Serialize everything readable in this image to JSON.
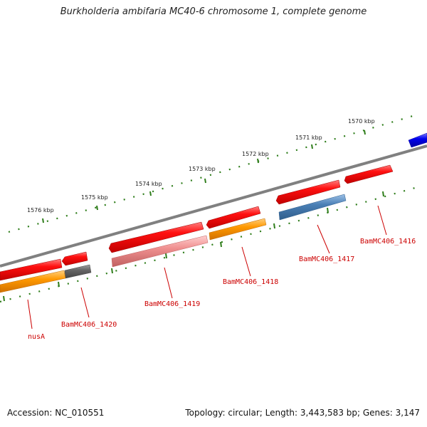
{
  "title": "Burkholderia ambifaria MC40-6 chromosome 1, complete genome",
  "footer": {
    "accession": "Accession: NC_010551",
    "summary": "Topology: circular; Length: 3,443,583 bp; Genes: 3,147"
  },
  "scale_labels": [
    "1570 kbp",
    "1571 kbp",
    "1572 kbp",
    "1573 kbp",
    "1574 kbp",
    "1575 kbp",
    "1576 kbp"
  ],
  "gene_labels": [
    "BamMC406_1416",
    "BamMC406_1417",
    "BamMC406_1418",
    "BamMC406_1419",
    "BamMC406_1420",
    "nusA"
  ],
  "colors": {
    "backbone": "#808080",
    "tick": "#2e7d1a",
    "cds": "#ee0000",
    "gene_blue": "#0000ee",
    "label": "#cc0000",
    "orange": "#ff9900",
    "steel_blue": "#4a7fb5",
    "pink": "#f09090",
    "gray": "#666666"
  }
}
